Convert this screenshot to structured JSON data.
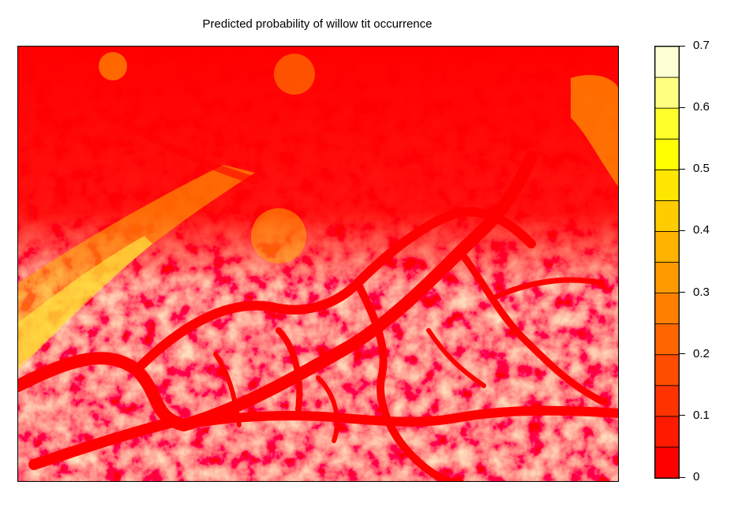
{
  "title": "Predicted probability of willow tit occurrence",
  "legend": {
    "ticks": [
      "0",
      "0.1",
      "0.2",
      "0.3",
      "0.4",
      "0.5",
      "0.6",
      "0.7"
    ],
    "min": 0,
    "max": 0.7,
    "bin_width": 0.05,
    "colors": [
      "#ff0000",
      "#ff1a00",
      "#ff3300",
      "#ff4d00",
      "#ff6600",
      "#ff8000",
      "#ff9900",
      "#ffb300",
      "#ffcc00",
      "#ffe600",
      "#ffff00",
      "#ffff2a",
      "#ffff80",
      "#ffffd5"
    ]
  },
  "chart_data": {
    "type": "heatmap",
    "title": "Predicted probability of willow tit occurrence",
    "colorbar_range": [
      0,
      0.7
    ],
    "colorbar_ticks": [
      0,
      0.1,
      0.2,
      0.3,
      0.4,
      0.5,
      0.6,
      0.7
    ],
    "colormap": "heat (red → yellow → white)",
    "legend_position": "right"
  }
}
